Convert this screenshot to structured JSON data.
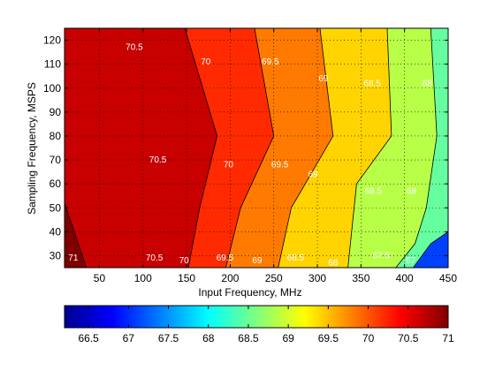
{
  "chart_data": {
    "type": "contour",
    "xlabel": "Input Frequency, MHz",
    "ylabel": "Sampling Frequency, MSPS",
    "xlim": [
      10,
      450
    ],
    "ylim": [
      25,
      125
    ],
    "xticks": [
      50,
      100,
      150,
      200,
      250,
      300,
      350,
      400,
      450
    ],
    "yticks": [
      30,
      40,
      50,
      60,
      70,
      80,
      90,
      100,
      110,
      120
    ],
    "grid": true,
    "colormap": "jet",
    "colorbar": {
      "placement": "bottom",
      "range": [
        66.2,
        71.0
      ],
      "ticks": [
        66.5,
        67,
        67.5,
        68,
        68.5,
        69,
        69.5,
        70,
        70.5,
        71
      ]
    },
    "contour_levels": [
      {
        "level": 70.5,
        "color": "#df0000",
        "points": [
          [
            10,
            52
          ],
          [
            35,
            25
          ]
        ]
      },
      {
        "level": 70.5,
        "color": "#ff1e00",
        "points": [
          [
            148,
            125
          ],
          [
            185,
            80
          ],
          [
            165,
            50
          ],
          [
            152,
            25
          ]
        ]
      },
      {
        "level": 70.0,
        "color": "#ff7a00",
        "points": [
          [
            228,
            125
          ],
          [
            250,
            80
          ],
          [
            212,
            50
          ],
          [
            195,
            25
          ]
        ]
      },
      {
        "level": 69.5,
        "color": "#ffd400",
        "points": [
          [
            303,
            125
          ],
          [
            318,
            80
          ],
          [
            270,
            50
          ],
          [
            255,
            25
          ]
        ]
      },
      {
        "level": 69.0,
        "color": "#b8ff48",
        "points": [
          [
            380,
            125
          ],
          [
            385,
            80
          ],
          [
            345,
            60
          ],
          [
            335,
            25
          ]
        ]
      },
      {
        "level": 68.5,
        "color": "#66ffa0",
        "points": [
          [
            430,
            125
          ],
          [
            437,
            80
          ],
          [
            425,
            50
          ],
          [
            412,
            35
          ],
          [
            390,
            25
          ]
        ]
      },
      {
        "level": 68.0,
        "color": "#00e0ff",
        "points": [
          [
            490,
            125
          ],
          [
            485,
            80
          ],
          [
            462,
            50
          ],
          [
            452,
            35
          ],
          [
            450,
            25
          ]
        ]
      },
      {
        "level": 67.5,
        "color": "#0090ff",
        "points": [
          [
            510,
            125
          ],
          [
            510,
            25
          ]
        ]
      },
      {
        "level": 67.0,
        "color": "#0040ff",
        "points": [
          [
            510,
            65
          ],
          [
            470,
            45
          ],
          [
            430,
            35
          ],
          [
            410,
            25
          ]
        ]
      },
      {
        "level": 66.5,
        "color": "#0000c8",
        "points": [
          [
            510,
            45
          ],
          [
            475,
            30
          ],
          [
            460,
            25
          ]
        ]
      }
    ],
    "labels": [
      {
        "text": "71",
        "x": 20,
        "y": 29,
        "color": "#ffffff"
      },
      {
        "text": "70.5",
        "x": 90,
        "y": 117,
        "color": "#ffffff"
      },
      {
        "text": "70.5",
        "x": 117,
        "y": 70,
        "color": "#ffffff"
      },
      {
        "text": "70.5",
        "x": 113,
        "y": 29,
        "color": "#ffffff"
      },
      {
        "text": "70",
        "x": 172,
        "y": 111,
        "color": "#ffffff"
      },
      {
        "text": "70",
        "x": 198,
        "y": 68,
        "color": "#ffffff"
      },
      {
        "text": "70",
        "x": 147,
        "y": 28,
        "color": "#ffffff"
      },
      {
        "text": "69.5",
        "x": 246,
        "y": 111,
        "color": "#ffffff"
      },
      {
        "text": "69.5",
        "x": 257,
        "y": 68,
        "color": "#ffffff"
      },
      {
        "text": "69.5",
        "x": 194,
        "y": 29,
        "color": "#ffffff"
      },
      {
        "text": "69",
        "x": 307,
        "y": 104,
        "color": "#ffffff"
      },
      {
        "text": "69",
        "x": 295,
        "y": 64,
        "color": "#ffffff"
      },
      {
        "text": "69",
        "x": 231,
        "y": 28,
        "color": "#ffffff"
      },
      {
        "text": "68.5",
        "x": 363,
        "y": 102,
        "color": "#ffffff"
      },
      {
        "text": "68.5",
        "x": 364,
        "y": 57,
        "color": "#ffffff"
      },
      {
        "text": "68.5",
        "x": 275,
        "y": 29,
        "color": "#ffffff"
      },
      {
        "text": "68",
        "x": 426,
        "y": 102,
        "color": "#ffffff"
      },
      {
        "text": "68",
        "x": 408,
        "y": 57,
        "color": "#ffffff"
      },
      {
        "text": "68",
        "x": 318,
        "y": 27,
        "color": "#ffffff"
      },
      {
        "text": "67.5",
        "x": 373,
        "y": 30,
        "color": "#ffffff"
      },
      {
        "text": "67",
        "x": 407,
        "y": 28,
        "color": "#ffffff"
      }
    ]
  }
}
